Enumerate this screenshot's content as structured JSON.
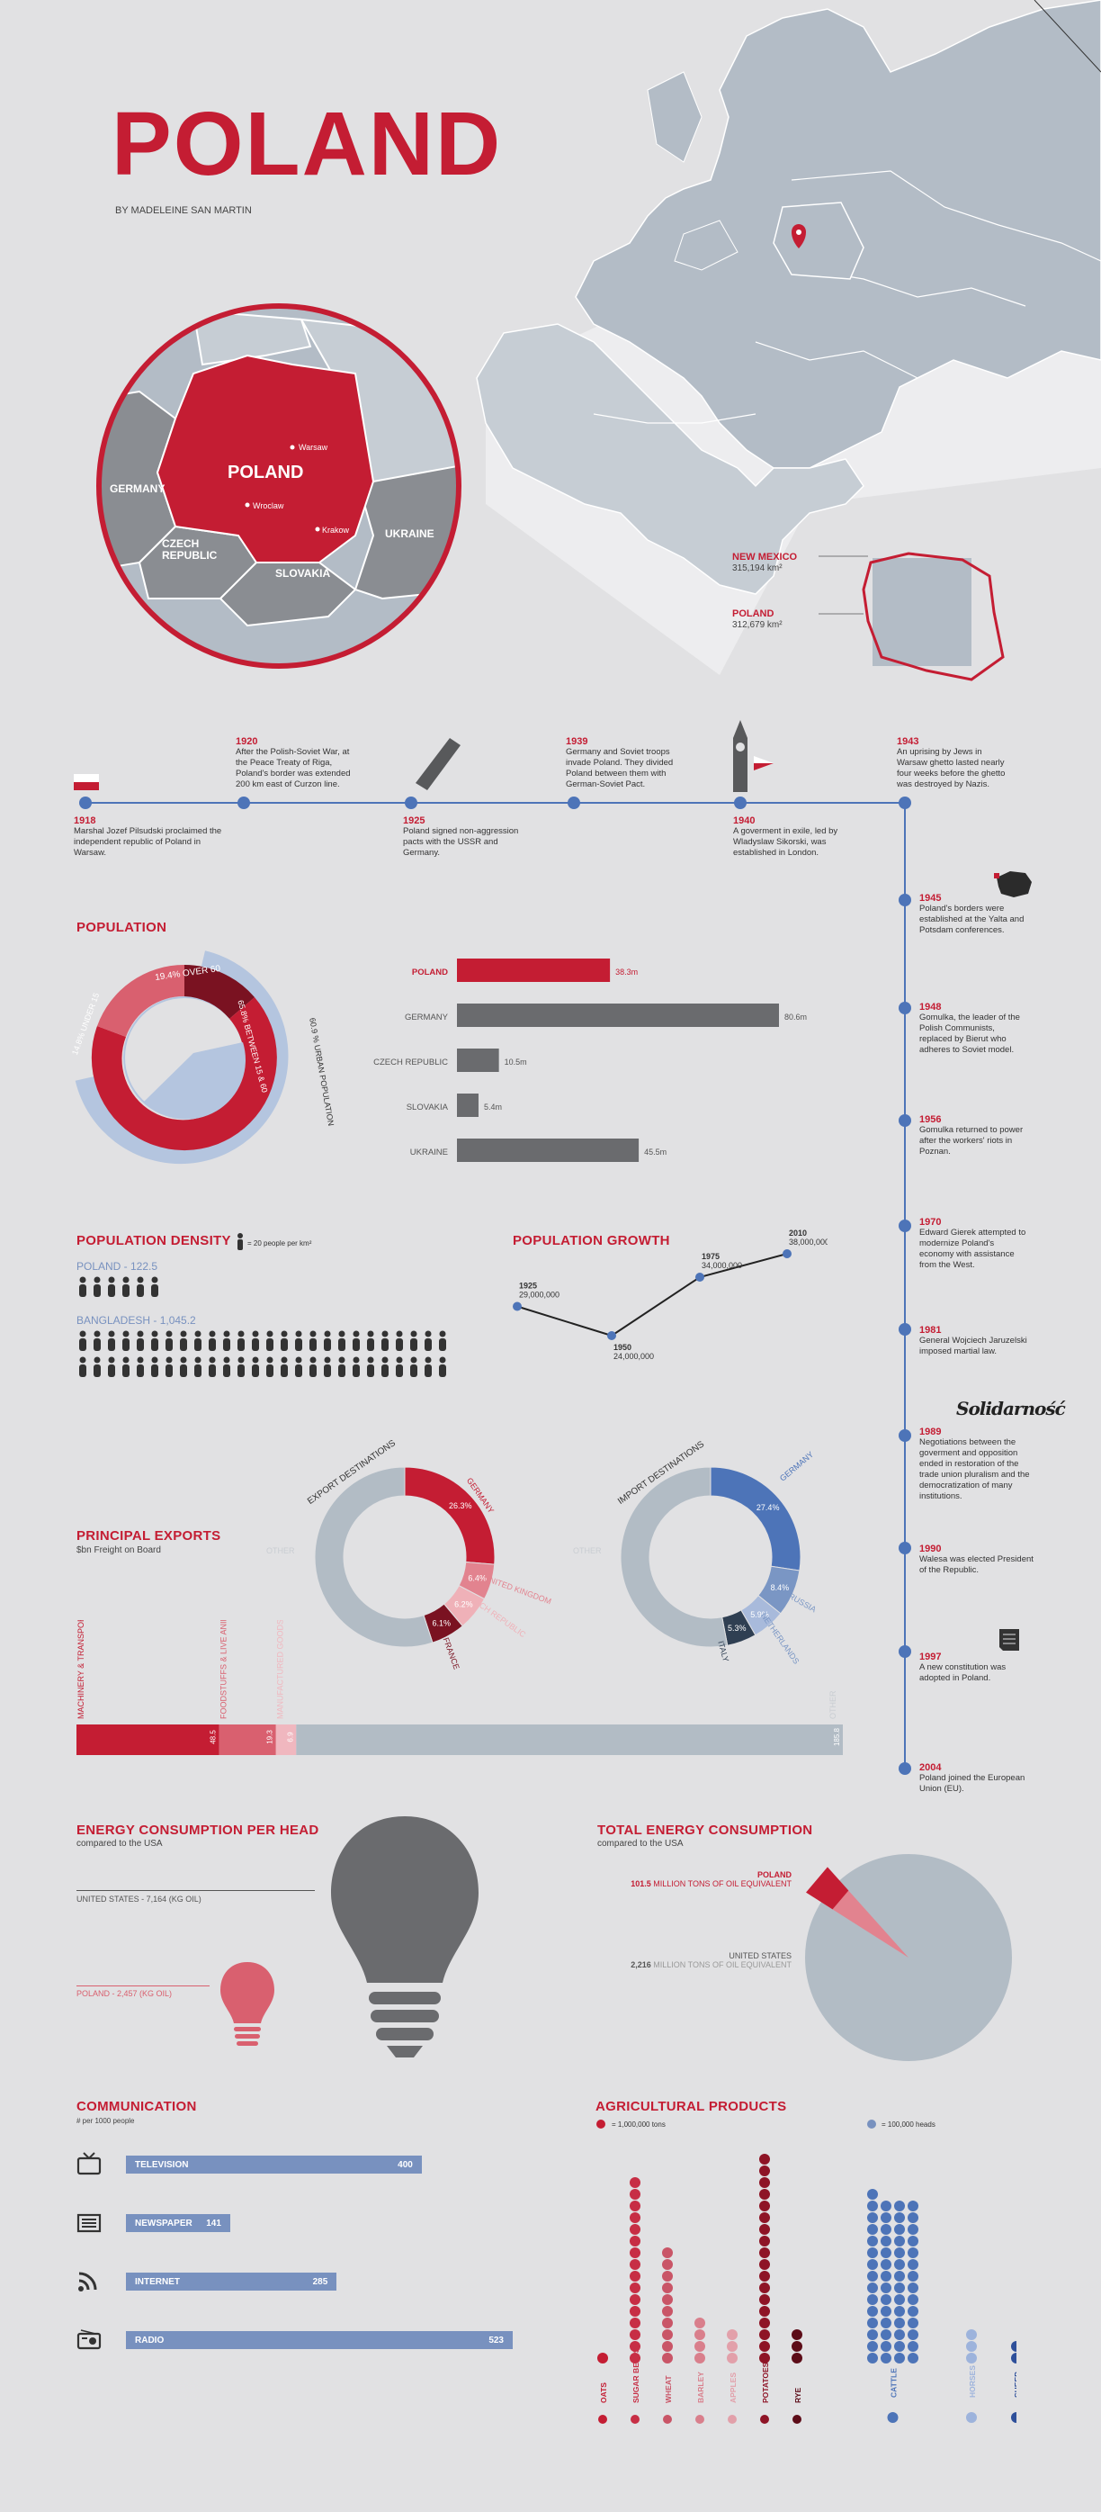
{
  "header": {
    "title": "POLAND",
    "byline": "BY MADELEINE SAN MARTIN"
  },
  "map": {
    "labels": {
      "poland": "POLAND",
      "germany": "GERMANY",
      "czech": "CZECH\nREPUBLIC",
      "slovakia": "SLOVAKIA",
      "ukraine": "UKRAINE"
    },
    "cities": [
      "Warsaw",
      "Wroclaw",
      "Krakow"
    ],
    "compare": [
      {
        "name": "NEW MEXICO",
        "area": "315,194 km²"
      },
      {
        "name": "POLAND",
        "area": "312,679 km²"
      }
    ]
  },
  "timeline_top": [
    {
      "year": "1918",
      "text": "Marshal Jozef Pilsudski proclaimed the independent republic of Poland in Warsaw."
    },
    {
      "year": "1920",
      "text": "After the Polish-Soviet War, at the Peace Treaty of Riga, Poland's border was extended 200 km east of Curzon line."
    },
    {
      "year": "1925",
      "text": "Poland signed non-aggression pacts with the USSR and Germany."
    },
    {
      "year": "1939",
      "text": "Germany and Soviet troops invade Poland. They divided Poland between them with German-Soviet Pact."
    },
    {
      "year": "1940",
      "text": "A goverment in exile, led by Wladyslaw Sikorski, was established in London."
    },
    {
      "year": "1943",
      "text": "An uprising by Jews in Warsaw ghetto lasted nearly four weeks before the ghetto was destroyed by Nazis."
    }
  ],
  "timeline_side": [
    {
      "year": "1945",
      "text": "Poland's borders were established at the Yalta and Potsdam conferences."
    },
    {
      "year": "1948",
      "text": "Gomulka, the leader of the Polish Communists, replaced by Bierut who adheres to Soviet model."
    },
    {
      "year": "1956",
      "text": "Gomulka returned to power after the workers' riots in Poznan."
    },
    {
      "year": "1970",
      "text": "Edward Gierek attempted to modernize Poland's economy with assistance from the West."
    },
    {
      "year": "1981",
      "text": "General Wojciech Jaruzelski imposed martial law."
    },
    {
      "year": "1989",
      "text": "Negotiations between the goverment and opposition ended in restoration of the trade union pluralism and the democratization of many institutions."
    },
    {
      "year": "1990",
      "text": "Walesa was elected President of the Republic."
    },
    {
      "year": "1997",
      "text": "A new constitution was adopted in Poland."
    },
    {
      "year": "2004",
      "text": "Poland joined the European Union (EU)."
    }
  ],
  "solidarnosc": "Solidarność",
  "population": {
    "title": "POPULATION",
    "ring_labels": {
      "over60": "19.4% OVER 60",
      "under15": "14.8% UNDER 15",
      "between": "65.8% BETWEEN 15 & 60",
      "urban": "60.9 % URBAN POPULATION"
    },
    "bars": [
      {
        "name": "POLAND",
        "value": 38.3,
        "label": "38.3m"
      },
      {
        "name": "GERMANY",
        "value": 80.6,
        "label": "80.6m"
      },
      {
        "name": "CZECH REPUBLIC",
        "value": 10.5,
        "label": "10.5m"
      },
      {
        "name": "SLOVAKIA",
        "value": 5.4,
        "label": "5.4m"
      },
      {
        "name": "UKRAINE",
        "value": 45.5,
        "label": "45.5m"
      }
    ]
  },
  "density": {
    "title": "POPULATION DENSITY",
    "legend": "= 20 people per km²",
    "rows": [
      {
        "name": "POLAND - 122.5",
        "value": 122.5
      },
      {
        "name": "BANGLADESH - 1,045.2",
        "value": 1045.2
      }
    ]
  },
  "growth": {
    "title": "POPULATION GROWTH",
    "points": [
      {
        "year": "1925",
        "value": 29000000,
        "label": "29,000,000"
      },
      {
        "year": "1950",
        "value": 24000000,
        "label": "24,000,000"
      },
      {
        "year": "1975",
        "value": 34000000,
        "label": "34,000,000"
      },
      {
        "year": "2010",
        "value": 38000000,
        "label": "38,000,000"
      }
    ]
  },
  "exports": {
    "title": "PRINCIPAL EXPORTS",
    "subtitle": "$bn Freight on Board",
    "export_title": "EXPORT DESTINATIONS",
    "import_title": "IMPORT DESTINATIONS",
    "export_slices": [
      {
        "name": "GERMANY",
        "pct": 26.3,
        "label": "26.3%",
        "color": "#c41d33"
      },
      {
        "name": "UNITED KINGDOM",
        "pct": 6.4,
        "label": "6.4%",
        "color": "#e2838f"
      },
      {
        "name": "CZECH REPUBLIC",
        "pct": 6.2,
        "label": "6.2%",
        "color": "#efb1b8"
      },
      {
        "name": "FRANCE",
        "pct": 6.1,
        "label": "6.1%",
        "color": "#7a1221"
      },
      {
        "name": "OTHER",
        "pct": 55.0,
        "label": "",
        "color": "#b2bcc5"
      }
    ],
    "import_slices": [
      {
        "name": "GERMANY",
        "pct": 27.4,
        "label": "27.4%",
        "color": "#4d74b8"
      },
      {
        "name": "RUSSIA",
        "pct": 8.4,
        "label": "8.4%",
        "color": "#7a96c4"
      },
      {
        "name": "NETHERLANDS",
        "pct": 5.9,
        "label": "5.9%",
        "color": "#a8badb"
      },
      {
        "name": "ITALY",
        "pct": 5.3,
        "label": "5.3%",
        "color": "#2f3f52"
      },
      {
        "name": "OTHER",
        "pct": 53.0,
        "label": "",
        "color": "#b2bcc5"
      }
    ],
    "other_label": "OTHER",
    "stack": [
      {
        "name": "MACHINERY & TRANSPORT EQUIPMENT",
        "value": 48.5,
        "label": "48.5",
        "color": "#c41d33"
      },
      {
        "name": "FOODSTUFFS & LIVE ANIMALS",
        "value": 19.3,
        "label": "19.3",
        "color": "#d9606f"
      },
      {
        "name": "MANUFACTURED GOODS (from Unidentified)",
        "value": 6.9,
        "label": "6.9",
        "color": "#f0b7bf"
      },
      {
        "name": "OTHER",
        "value": 185.8,
        "label": "185.8",
        "color": "#b2bcc5"
      }
    ]
  },
  "energy_head": {
    "title": "ENERGY CONSUMPTION PER HEAD",
    "subtitle": "compared to the USA",
    "usa": "UNITED STATES - 7,164 (KG OIL)",
    "poland": "POLAND - 2,457 (KG OIL)"
  },
  "energy_total": {
    "title": "TOTAL ENERGY CONSUMPTION",
    "subtitle": "compared to the USA",
    "poland_name": "POLAND",
    "poland_value": "101.5",
    "poland_unit": "MILLION TONS OF OIL EQUIVALENT",
    "usa_name": "UNITED STATES",
    "usa_value": "2,216",
    "usa_unit": "MILLION TONS OF OIL EQUIVALENT",
    "share": 0.0438
  },
  "communication": {
    "title": "COMMUNICATION",
    "subtitle": "# per 1000 people",
    "items": [
      {
        "name": "TELEVISION",
        "value": 400,
        "label": "400",
        "icon": "tv-icon"
      },
      {
        "name": "NEWSPAPER",
        "value": 141,
        "label": "141",
        "icon": "newspaper-icon"
      },
      {
        "name": "INTERNET",
        "value": 285,
        "label": "285",
        "icon": "rss-icon"
      },
      {
        "name": "RADIO",
        "value": 523,
        "label": "523",
        "icon": "radio-icon"
      }
    ]
  },
  "agri": {
    "title": "AGRICULTURAL PRODUCTS",
    "legend_tons": "= 1,000,000 tons",
    "legend_heads": "= 100,000 heads",
    "crops": [
      {
        "name": "OATS",
        "dots": 1,
        "color": "#c41d33"
      },
      {
        "name": "SUGAR BEETS",
        "dots": 16,
        "color": "#c72e45"
      },
      {
        "name": "WHEAT",
        "dots": 10,
        "color": "#c95567"
      },
      {
        "name": "BARLEY",
        "dots": 4,
        "color": "#d97f8c"
      },
      {
        "name": "APPLES",
        "dots": 3,
        "color": "#e2a0aa"
      },
      {
        "name": "POTATOES",
        "dots": 18,
        "color": "#8e1426"
      },
      {
        "name": "RYE",
        "dots": 3,
        "color": "#5c0c18"
      }
    ],
    "animals": [
      {
        "name": "CATTLE",
        "dots": 57,
        "cols": 4,
        "color": "#4d74b8"
      },
      {
        "name": "HORSES",
        "dots": 3,
        "cols": 1,
        "color": "#9db3dc"
      },
      {
        "name": "SHEEP",
        "dots": 2,
        "cols": 1,
        "color": "#2e4f9a"
      }
    ]
  }
}
